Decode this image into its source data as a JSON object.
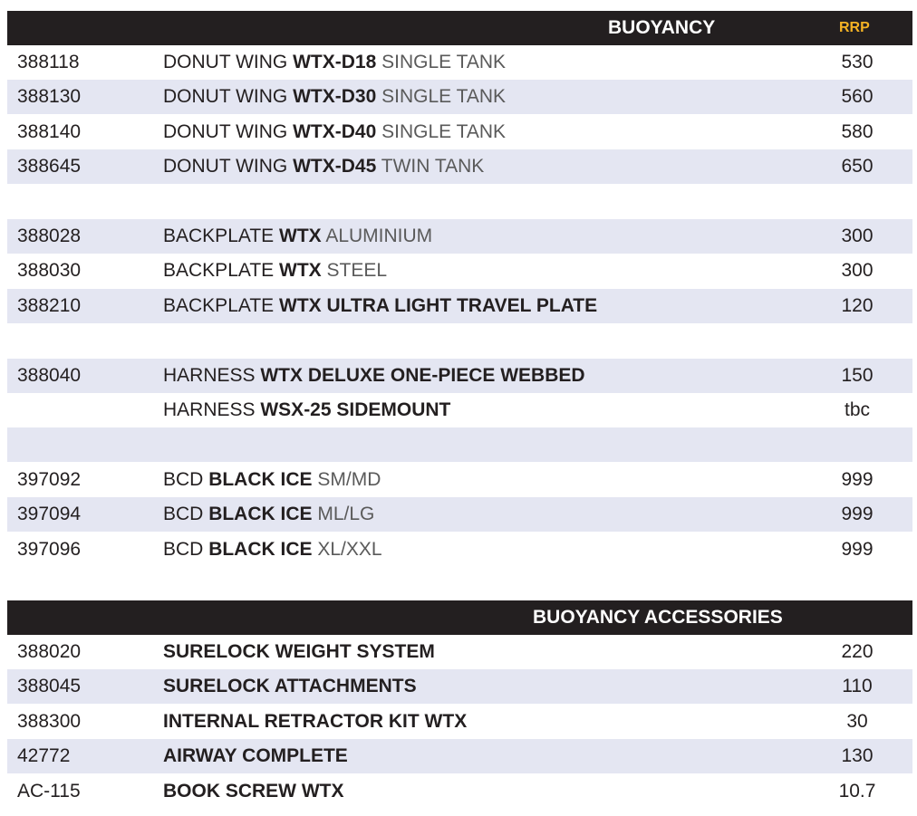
{
  "buoyancy_section": {
    "title": "BUOYANCY",
    "rrp_label": "RRP",
    "rows": [
      {
        "code": "388118",
        "desc": [
          {
            "t": "DONUT WING ",
            "s": "n"
          },
          {
            "t": "WTX-D18",
            "s": "b"
          },
          {
            "t": " SINGLE TANK",
            "s": "g"
          }
        ],
        "price": "530"
      },
      {
        "code": "388130",
        "desc": [
          {
            "t": "DONUT WING ",
            "s": "n"
          },
          {
            "t": "WTX-D30",
            "s": "b"
          },
          {
            "t": " SINGLE TANK",
            "s": "g"
          }
        ],
        "price": "560"
      },
      {
        "code": "388140",
        "desc": [
          {
            "t": "DONUT WING ",
            "s": "n"
          },
          {
            "t": "WTX-D40",
            "s": "b"
          },
          {
            "t": " SINGLE TANK",
            "s": "g"
          }
        ],
        "price": "580"
      },
      {
        "code": "388645",
        "desc": [
          {
            "t": "DONUT WING ",
            "s": "n"
          },
          {
            "t": "WTX-D45",
            "s": "b"
          },
          {
            "t": " TWIN TANK",
            "s": "g"
          }
        ],
        "price": "650"
      },
      {
        "code": "",
        "desc": [],
        "price": ""
      },
      {
        "code": "388028",
        "desc": [
          {
            "t": "BACKPLATE ",
            "s": "n"
          },
          {
            "t": "WTX",
            "s": "b"
          },
          {
            "t": " ALUMINIUM",
            "s": "g"
          }
        ],
        "price": "300"
      },
      {
        "code": "388030",
        "desc": [
          {
            "t": "BACKPLATE ",
            "s": "n"
          },
          {
            "t": "WTX",
            "s": "b"
          },
          {
            "t": " STEEL",
            "s": "g"
          }
        ],
        "price": "300"
      },
      {
        "code": "388210",
        "desc": [
          {
            "t": "BACKPLATE ",
            "s": "n"
          },
          {
            "t": "WTX ULTRA LIGHT TRAVEL PLATE",
            "s": "b"
          }
        ],
        "price": "120"
      },
      {
        "code": "",
        "desc": [],
        "price": ""
      },
      {
        "code": "388040",
        "desc": [
          {
            "t": "HARNESS ",
            "s": "n"
          },
          {
            "t": "WTX DELUXE ONE-PIECE WEBBED",
            "s": "b"
          }
        ],
        "price": "150"
      },
      {
        "code": "",
        "desc": [
          {
            "t": "HARNESS ",
            "s": "n"
          },
          {
            "t": "WSX-25 SIDEMOUNT",
            "s": "b"
          }
        ],
        "price": "tbc"
      },
      {
        "code": "",
        "desc": [],
        "price": ""
      },
      {
        "code": "397092",
        "desc": [
          {
            "t": "BCD ",
            "s": "n"
          },
          {
            "t": "BLACK ICE",
            "s": "b"
          },
          {
            "t": " SM/MD",
            "s": "g"
          }
        ],
        "price": "999"
      },
      {
        "code": "397094",
        "desc": [
          {
            "t": "BCD ",
            "s": "n"
          },
          {
            "t": "BLACK ICE",
            "s": "b"
          },
          {
            "t": " ML/LG",
            "s": "g"
          }
        ],
        "price": "999"
      },
      {
        "code": "397096",
        "desc": [
          {
            "t": "BCD ",
            "s": "n"
          },
          {
            "t": "BLACK ICE",
            "s": "b"
          },
          {
            "t": " XL/XXL",
            "s": "g"
          }
        ],
        "price": "999"
      }
    ]
  },
  "accessories_section": {
    "title": "BUOYANCY ACCESSORIES",
    "rows": [
      {
        "code": "388020",
        "desc": [
          {
            "t": "SURELOCK WEIGHT SYSTEM",
            "s": "b"
          }
        ],
        "price": "220"
      },
      {
        "code": "388045",
        "desc": [
          {
            "t": "SURELOCK ATTACHMENTS",
            "s": "b"
          }
        ],
        "price": "110"
      },
      {
        "code": "388300",
        "desc": [
          {
            "t": "INTERNAL RETRACTOR KIT WTX",
            "s": "b"
          }
        ],
        "price": "30"
      },
      {
        "code": "42772",
        "desc": [
          {
            "t": "AIRWAY COMPLETE",
            "s": "b"
          }
        ],
        "price": "130"
      },
      {
        "code": "AC-115",
        "desc": [
          {
            "t": "BOOK SCREW WTX",
            "s": "b"
          }
        ],
        "price": "10.7"
      }
    ]
  },
  "colors": {
    "header_bg": "#231f20",
    "rrp_accent": "#f5b324",
    "row_shade": "#e4e6f2"
  }
}
